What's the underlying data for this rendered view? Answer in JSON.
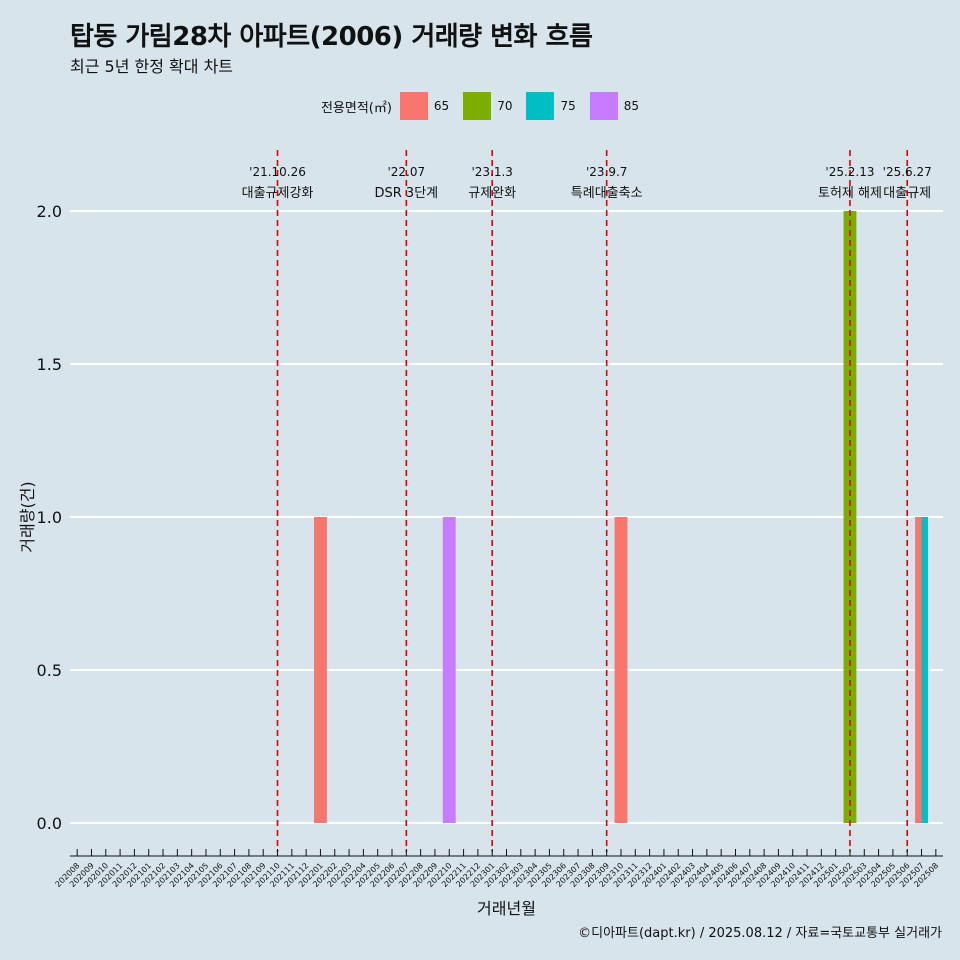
{
  "title": "탑동 가림28차 아파트(2006) 거래량 변화 흐름",
  "subtitle": "최근 5년 한정 확대 차트",
  "caption": "©디아파트(dapt.kr) / 2025.08.12 / 자료=국토교통부 실거래가",
  "legend": {
    "title": "전용면적(㎡)",
    "items": [
      {
        "label": "65",
        "color": "#f8766d"
      },
      {
        "label": "70",
        "color": "#7cae00"
      },
      {
        "label": "75",
        "color": "#00bfc4"
      },
      {
        "label": "85",
        "color": "#c77cff"
      }
    ]
  },
  "chart_data": {
    "type": "bar",
    "xlabel": "거래년월",
    "ylabel": "거래량(건)",
    "ylim": [
      0,
      2
    ],
    "yticks": [
      "0.0",
      "0.5",
      "1.0",
      "1.5",
      "2.0"
    ],
    "categories": [
      "202008",
      "202009",
      "202010",
      "202011",
      "202012",
      "202101",
      "202102",
      "202103",
      "202104",
      "202105",
      "202106",
      "202107",
      "202108",
      "202109",
      "202110",
      "202111",
      "202112",
      "202201",
      "202202",
      "202203",
      "202204",
      "202205",
      "202206",
      "202207",
      "202208",
      "202209",
      "202210",
      "202211",
      "202212",
      "202301",
      "202302",
      "202303",
      "202304",
      "202305",
      "202306",
      "202307",
      "202308",
      "202309",
      "202310",
      "202311",
      "202312",
      "202401",
      "202402",
      "202403",
      "202404",
      "202405",
      "202406",
      "202407",
      "202408",
      "202409",
      "202410",
      "202411",
      "202412",
      "202501",
      "202502",
      "202503",
      "202504",
      "202505",
      "202506",
      "202507",
      "202508"
    ],
    "series": [
      {
        "name": "65",
        "color": "#f8766d",
        "points": [
          {
            "x": "202201",
            "y": 1
          },
          {
            "x": "202310",
            "y": 1
          },
          {
            "x": "202507",
            "y": 1
          }
        ]
      },
      {
        "name": "70",
        "color": "#7cae00",
        "points": [
          {
            "x": "202502",
            "y": 2
          }
        ]
      },
      {
        "name": "75",
        "color": "#00bfc4",
        "points": [
          {
            "x": "202507",
            "y": 1
          }
        ]
      },
      {
        "name": "85",
        "color": "#c77cff",
        "points": [
          {
            "x": "202210",
            "y": 1
          }
        ]
      }
    ],
    "annotations": [
      {
        "date": "'21.10.26",
        "label": "대출규제강화",
        "x": "202110"
      },
      {
        "date": "'22.07",
        "label": "DSR 3단계",
        "x": "202207"
      },
      {
        "date": "'23.1.3",
        "label": "규제완화",
        "x": "202301"
      },
      {
        "date": "'23.9.7",
        "label": "특례대출축소",
        "x": "202309"
      },
      {
        "date": "'25.2.13",
        "label": "토허제 해제",
        "x": "202502"
      },
      {
        "date": "'25.6.27",
        "label": "대출규제",
        "x": "202506"
      }
    ],
    "grid": true,
    "legend_position": "top"
  }
}
